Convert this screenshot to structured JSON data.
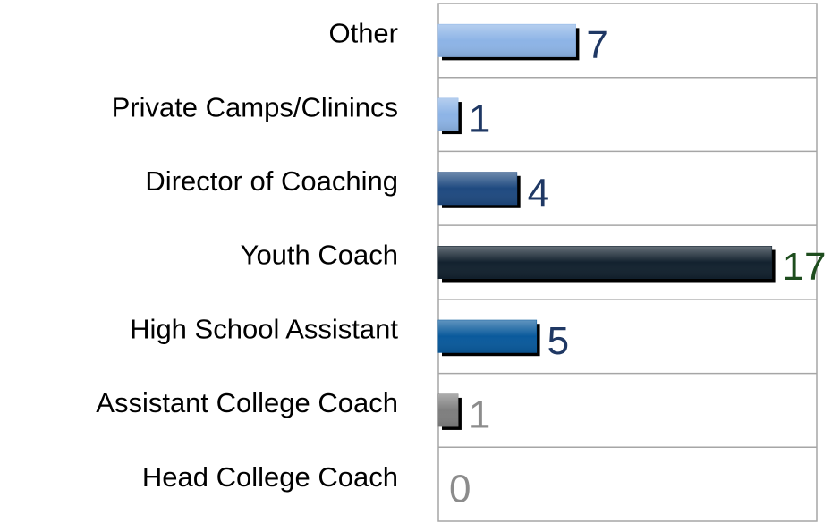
{
  "chart_data": {
    "type": "bar",
    "orientation": "horizontal",
    "categories": [
      "Other",
      "Private Camps/Clinincs",
      "Director of Coaching",
      "Youth Coach",
      "High School Assistant",
      "Assistant College Coach",
      "Head College Coach"
    ],
    "values": [
      7,
      1,
      4,
      17,
      5,
      1,
      0
    ],
    "colors": [
      "#8db4e6",
      "#8db4e6",
      "#1f4a80",
      "#13222f",
      "#0a5a9c",
      "#7f7f7f",
      "#a6a6a6"
    ],
    "label_colors": [
      "#1f3864",
      "#1f3864",
      "#1f3864",
      "#1e4d1e",
      "#1f3864",
      "#8c8c8c",
      "#8c8c8c"
    ],
    "xlim": [
      0,
      19.3
    ]
  }
}
